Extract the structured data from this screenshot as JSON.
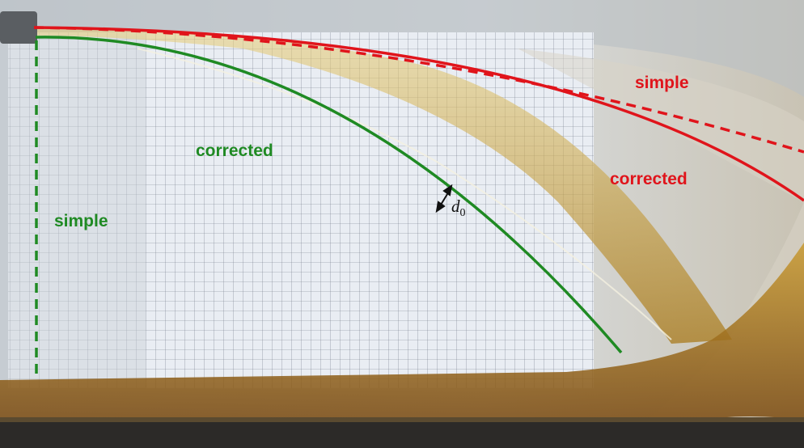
{
  "labels": {
    "red_simple": "simple",
    "red_corrected": "corrected",
    "green_corrected": "corrected",
    "green_simple": "simple",
    "thickness_symbol": "d",
    "thickness_subscript": "0"
  },
  "colors": {
    "red_curve": "#e0141b",
    "green_curve": "#1f8a23",
    "fluid": "#c9a23a",
    "grid_paper": "#eef1f5"
  }
}
